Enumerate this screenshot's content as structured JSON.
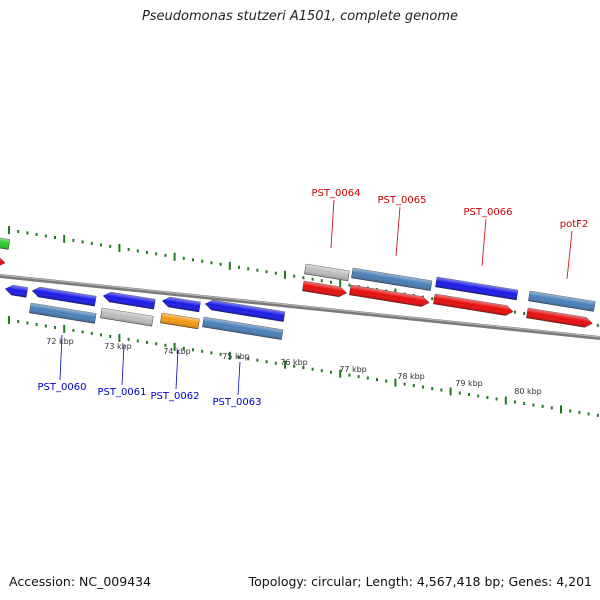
{
  "title": "Pseudomonas stutzeri A1501, complete genome",
  "footer": {
    "accession": "Accession: NC_009434",
    "stats": "Topology: circular; Length: 4,567,418 bp; Genes: 4,201"
  },
  "scale_labels": [
    "72 kbp",
    "73 kbp",
    "74 kbp",
    "75 kbp",
    "76 kbp",
    "77 kbp",
    "78 kbp",
    "79 kbp",
    "80 kbp"
  ],
  "colors": {
    "blue": "#1a1ae6",
    "steelblue": "#4a7fb8",
    "red": "#e60d0d",
    "gray": "#bdbdbd",
    "orange": "#f29a0f",
    "green": "#2ec92e",
    "tick": "#1f7a1f",
    "backbone": "#7a7a7a",
    "label_blue": "#0000cc",
    "label_red": "#cc0000"
  },
  "gene_labels": {
    "bottom": [
      "PST_0060",
      "PST_0061",
      "PST_0062",
      "PST_0063"
    ],
    "top": [
      "PST_0064",
      "PST_0065",
      "PST_0066",
      "potF2"
    ]
  }
}
